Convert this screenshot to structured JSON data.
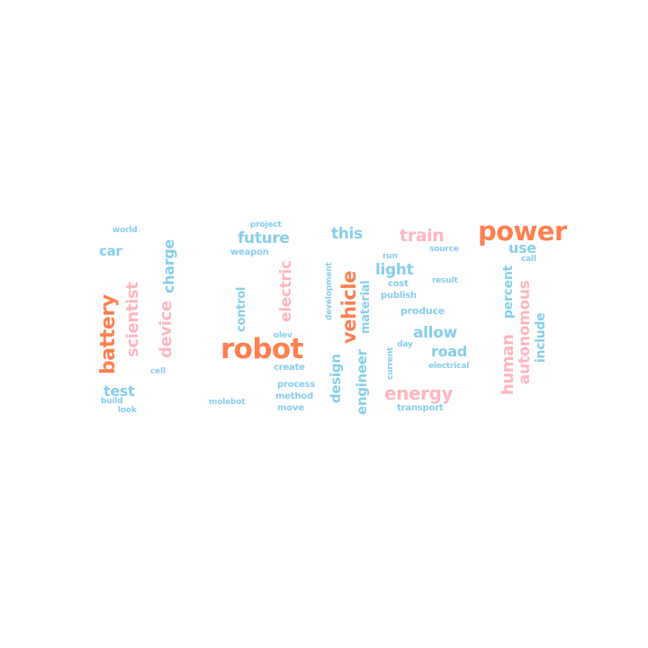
{
  "colors": {
    "coral": "#ff7f50",
    "pink": "#ffb6c1",
    "sky": "#87ceeb"
  },
  "words": {
    "robot": "robot",
    "power": "power",
    "vehicle": "vehicle",
    "battery": "battery",
    "energy": "energy",
    "train": "train",
    "human": "human",
    "autonomous": "autonomous",
    "scientist": "scientist",
    "device": "device",
    "electric": "electric",
    "charge": "charge",
    "future": "future",
    "allow": "allow",
    "road": "road",
    "light": "light",
    "this": "this",
    "use": "use",
    "test": "test",
    "car": "car",
    "design": "design",
    "engineer": "engineer",
    "material": "material",
    "percent": "percent",
    "include": "include",
    "control": "control",
    "produce": "produce",
    "weapon": "weapon",
    "world": "world",
    "project": "project",
    "source": "source",
    "call": "call",
    "run": "run",
    "cost": "cost",
    "publish": "publish",
    "result": "result",
    "development": "development",
    "olev": "olev",
    "create": "create",
    "day": "day",
    "current": "current",
    "electrical": "electrical",
    "cell": "cell",
    "process": "process",
    "method": "method",
    "move": "move",
    "molebot": "molebot",
    "build": "build",
    "look": "look",
    "transport": "transport"
  }
}
